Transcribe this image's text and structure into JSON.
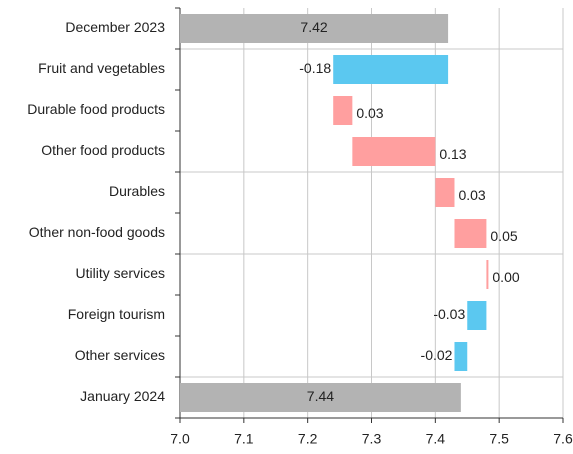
{
  "chart_data": {
    "type": "waterfall",
    "categories": [
      "December 2023",
      "Fruit and vegetables",
      "Durable food products",
      "Other food products",
      "Durables",
      "Other non-food goods",
      "Utility services",
      "Foreign tourism",
      "Other services",
      "January 2024"
    ],
    "values": [
      7.42,
      -0.18,
      0.03,
      0.13,
      0.03,
      0.05,
      0,
      -0.03,
      -0.02,
      7.44
    ],
    "value_labels": [
      "7.42",
      "-0.18",
      "0.03",
      "0.13",
      "0.03",
      "0.05",
      "0.00",
      "-0.03",
      "-0.02",
      "7.44"
    ],
    "colors": {
      "total": "#b3b3b3",
      "increase": "#ff9f9f",
      "decrease": "#5bc8f0"
    },
    "xlim": [
      7.0,
      7.6
    ],
    "xticks": [
      {
        "value": 7,
        "label": "7.0"
      },
      7.1,
      7.2,
      7.3,
      7.4,
      7.5,
      7.6
    ],
    "grid": true
  }
}
